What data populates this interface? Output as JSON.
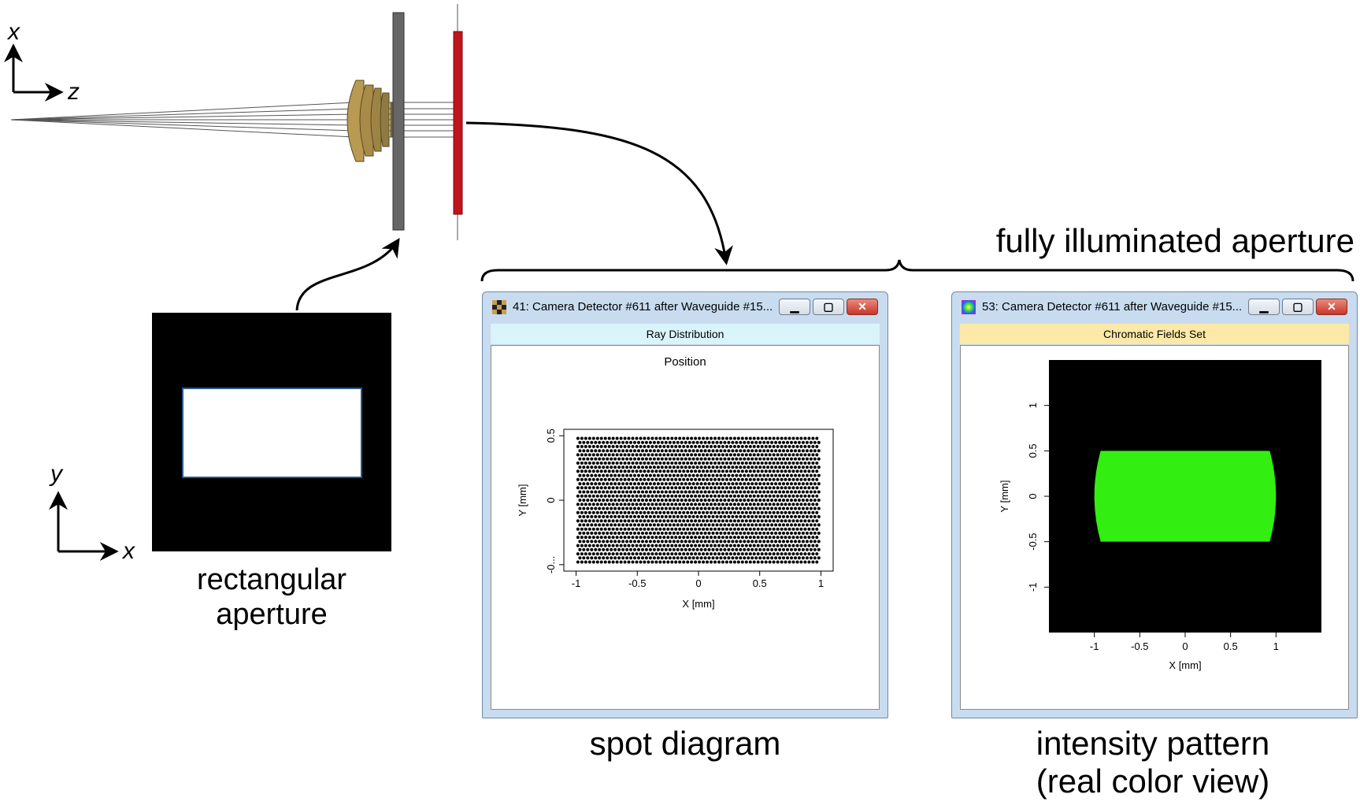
{
  "axes_top": {
    "vertical": "x",
    "horizontal": "z"
  },
  "axes_left": {
    "vertical": "y",
    "horizontal": "x"
  },
  "captions": {
    "aperture_line1": "rectangular",
    "aperture_line2": "aperture",
    "fully_illuminated": "fully illuminated aperture",
    "spot": "spot diagram",
    "intensity_line1": "intensity pattern",
    "intensity_line2": "(real color view)"
  },
  "window_spot": {
    "title": "41: Camera Detector #611 after Waveguide #15...",
    "subheader": "Ray Distribution",
    "plot_title": "Position",
    "header_color": "#d9f4fb",
    "icon": "checker-icon",
    "minimize_glyph": "▁",
    "maximize_glyph": "▢",
    "close_glyph": "✕"
  },
  "window_intensity": {
    "title": "53: Camera Detector #611 after Waveguide #15...",
    "subheader": "Chromatic Fields Set",
    "header_color": "#fce9a8",
    "icon": "color-field-icon",
    "minimize_glyph": "▁",
    "maximize_glyph": "▢",
    "close_glyph": "✕"
  },
  "chart_data": [
    {
      "type": "scatter",
      "title": "Position",
      "xlabel": "X [mm]",
      "ylabel": "Y [mm]",
      "xlim": [
        -1.1,
        1.1
      ],
      "ylim": [
        -0.55,
        0.55
      ],
      "x_ticks": [
        "-1",
        "-0.5",
        "0",
        "0.5",
        "1"
      ],
      "y_ticks": [
        "0.5",
        "0",
        "-0..."
      ],
      "points": "uniform rectangular ray distribution filling x in [-1, 1] mm, y in [-0.5, 0.5] mm",
      "point_color": "#000000"
    },
    {
      "type": "heatmap",
      "xlabel": "X [mm]",
      "ylabel": "Y [mm]",
      "xlim": [
        -1.5,
        1.5
      ],
      "ylim": [
        -1.5,
        1.5
      ],
      "x_ticks": [
        "-1",
        "-0.5",
        "0",
        "0.5",
        "1"
      ],
      "y_ticks": [
        "1",
        "0.5",
        "0",
        "-0.5",
        "-1"
      ],
      "field_region": {
        "x": [
          -1,
          1
        ],
        "y": [
          -0.5,
          0.5
        ]
      },
      "field_color": "#33ee11",
      "background_color": "#000000"
    }
  ]
}
